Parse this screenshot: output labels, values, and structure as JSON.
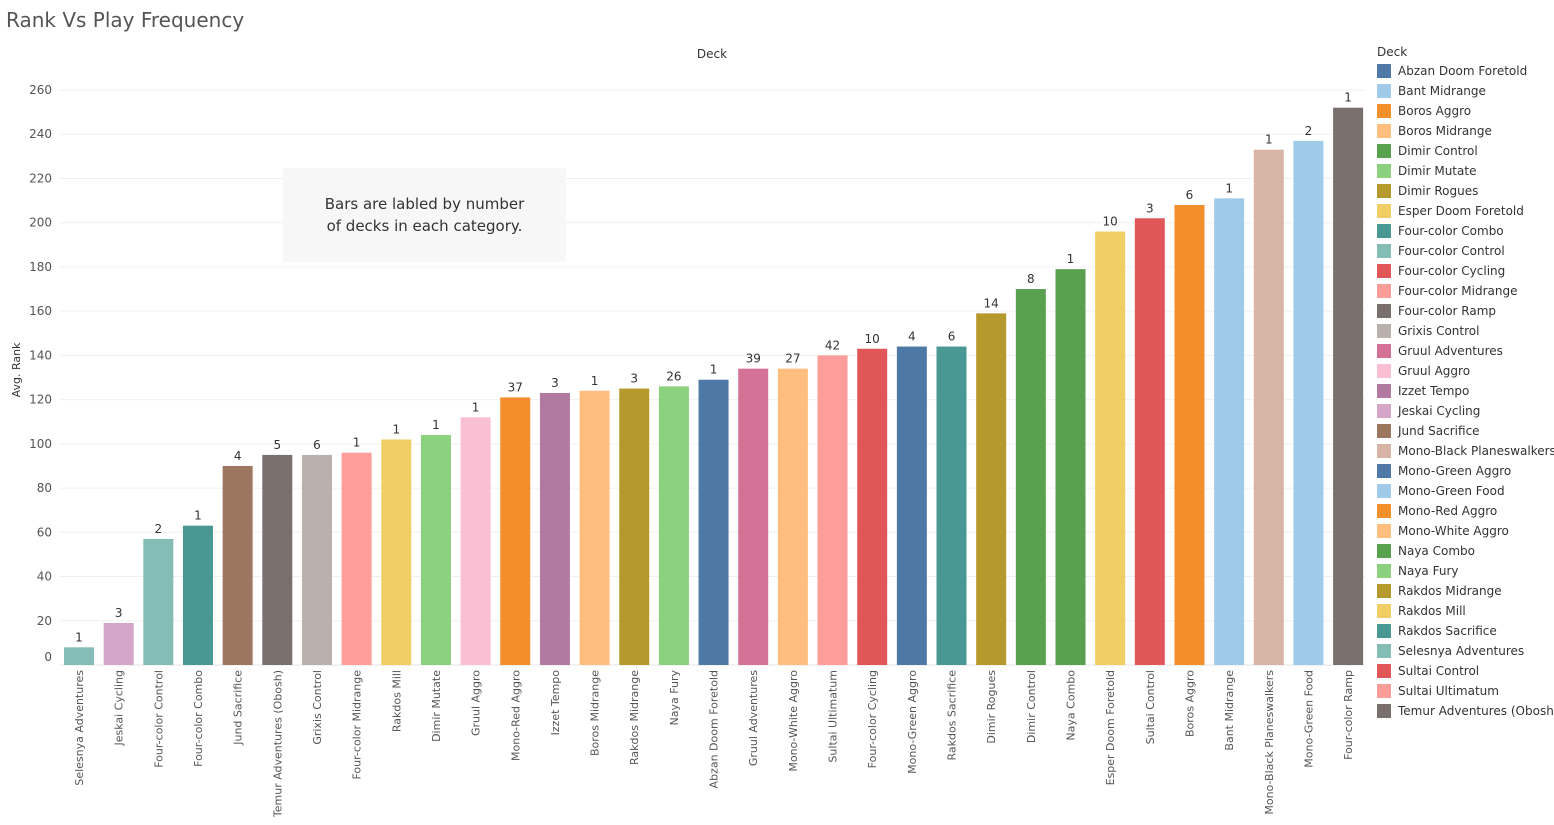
{
  "title": "Rank Vs Play Frequency",
  "note_text": "Bars are labled by number of decks in each category.",
  "note_line1": "Bars are labled by number",
  "note_line2": "of decks in each category.",
  "legend": {
    "title": "Deck",
    "items": [
      {
        "label": "Abzan Doom Foretold",
        "color": "#4e79a7"
      },
      {
        "label": "Bant Midrange",
        "color": "#a0cbe8"
      },
      {
        "label": "Boros Aggro",
        "color": "#f28e2b"
      },
      {
        "label": "Boros Midrange",
        "color": "#ffbe7d"
      },
      {
        "label": "Dimir Control",
        "color": "#59a14f"
      },
      {
        "label": "Dimir Mutate",
        "color": "#8cd17d"
      },
      {
        "label": "Dimir Rogues",
        "color": "#b6992d"
      },
      {
        "label": "Esper Doom Foretold",
        "color": "#f1ce63"
      },
      {
        "label": "Four-color Combo",
        "color": "#499894"
      },
      {
        "label": "Four-color Control",
        "color": "#86bcb6"
      },
      {
        "label": "Four-color Cycling",
        "color": "#e15759"
      },
      {
        "label": "Four-color Midrange",
        "color": "#ff9d9a"
      },
      {
        "label": "Four-color Ramp",
        "color": "#79706e"
      },
      {
        "label": "Grixis Control",
        "color": "#bab0ac"
      },
      {
        "label": "Gruul Adventures",
        "color": "#d37295"
      },
      {
        "label": "Gruul Aggro",
        "color": "#fabfd2"
      },
      {
        "label": "Izzet Tempo",
        "color": "#b07aa1"
      },
      {
        "label": "Jeskai Cycling",
        "color": "#d4a6c8"
      },
      {
        "label": "Jund Sacrifice",
        "color": "#9d7660"
      },
      {
        "label": "Mono-Black Planeswalkers",
        "color": "#d7b5a6"
      },
      {
        "label": "Mono-Green Aggro",
        "color": "#4e79a7"
      },
      {
        "label": "Mono-Green Food",
        "color": "#a0cbe8"
      },
      {
        "label": "Mono-Red Aggro",
        "color": "#f28e2b"
      },
      {
        "label": "Mono-White Aggro",
        "color": "#ffbe7d"
      },
      {
        "label": "Naya Combo",
        "color": "#59a14f"
      },
      {
        "label": "Naya Fury",
        "color": "#8cd17d"
      },
      {
        "label": "Rakdos Midrange",
        "color": "#b6992d"
      },
      {
        "label": "Rakdos Mill",
        "color": "#f1ce63"
      },
      {
        "label": "Rakdos Sacrifice",
        "color": "#499894"
      },
      {
        "label": "Selesnya Adventures",
        "color": "#86bcb6"
      },
      {
        "label": "Sultai Control",
        "color": "#e15759"
      },
      {
        "label": "Sultai Ultimatum",
        "color": "#ff9d9a"
      },
      {
        "label": "Temur Adventures (Obosh)",
        "color": "#79706e"
      }
    ]
  },
  "chart_data": {
    "type": "bar",
    "title": "Rank Vs Play Frequency",
    "header": "Deck",
    "xlabel": "",
    "ylabel": "Avg. Rank",
    "ylim": [
      0,
      260
    ],
    "yticks": [
      0,
      20,
      40,
      60,
      80,
      100,
      120,
      140,
      160,
      180,
      200,
      220,
      240,
      260
    ],
    "grid": true,
    "legend_position": "right",
    "categories": [
      "Selesnya Adventures",
      "Jeskai Cycling",
      "Four-color Control",
      "Four-color Combo",
      "Jund Sacrifice",
      "Temur Adventures (Obosh)",
      "Grixis Control",
      "Four-color Midrange",
      "Rakdos Mill",
      "Dimir Mutate",
      "Gruul Aggro",
      "Mono-Red Aggro",
      "Izzet Tempo",
      "Boros Midrange",
      "Rakdos Midrange",
      "Naya Fury",
      "Abzan Doom Foretold",
      "Gruul Adventures",
      "Mono-White Aggro",
      "Sultai Ultimatum",
      "Four-color Cycling",
      "Mono-Green Aggro",
      "Rakdos Sacrifice",
      "Dimir Rogues",
      "Dimir Control",
      "Naya Combo",
      "Esper Doom Foretold",
      "Sultai Control",
      "Boros Aggro",
      "Bant Midrange",
      "Mono-Black Planeswalkers",
      "Mono-Green Food",
      "Four-color Ramp"
    ],
    "values": [
      8,
      19,
      57,
      63,
      90,
      95,
      95,
      96,
      102,
      104,
      112,
      121,
      123,
      124,
      125,
      126,
      129,
      134,
      134,
      140,
      143,
      144,
      144,
      159,
      170,
      179,
      196,
      202,
      208,
      211,
      233,
      237,
      252
    ],
    "labels": [
      1,
      3,
      2,
      1,
      4,
      5,
      6,
      1,
      1,
      1,
      1,
      37,
      3,
      1,
      3,
      26,
      1,
      39,
      27,
      42,
      10,
      4,
      6,
      14,
      8,
      1,
      10,
      3,
      6,
      1,
      1,
      2,
      1
    ]
  }
}
